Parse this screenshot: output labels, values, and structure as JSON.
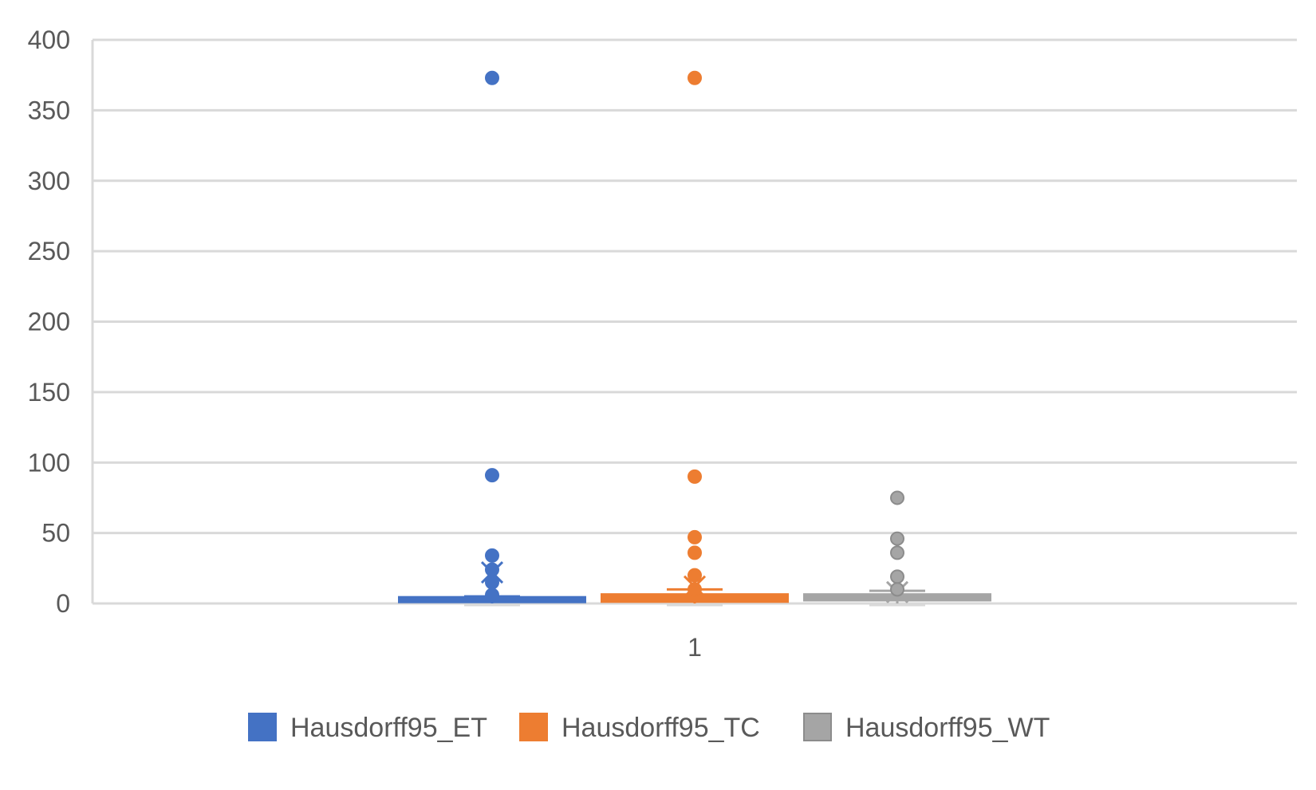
{
  "chart_data": {
    "type": "box",
    "title": "",
    "xlabel": "",
    "ylabel": "",
    "categories": [
      "1"
    ],
    "ylim": [
      0,
      400
    ],
    "yticks": [
      0,
      50,
      100,
      150,
      200,
      250,
      300,
      350,
      400
    ],
    "grid": true,
    "legend_position": "bottom",
    "series": [
      {
        "name": "Hausdorff95_ET",
        "color": "#4472C4",
        "min": 0,
        "q1": 1,
        "median": 2,
        "q3": 3,
        "max": 5,
        "mean": 22,
        "outliers": [
          373,
          91,
          34,
          24,
          15,
          6
        ]
      },
      {
        "name": "Hausdorff95_TC",
        "color": "#ED7D31",
        "min": 0,
        "q1": 1,
        "median": 2,
        "q3": 5,
        "max": 10,
        "mean": 12,
        "outliers": [
          373,
          90,
          47,
          36,
          20,
          10
        ]
      },
      {
        "name": "Hausdorff95_WT",
        "color": "#A5A5A5",
        "min": 0,
        "q1": 2,
        "median": 3,
        "q3": 5,
        "max": 9,
        "mean": 8,
        "outliers": [
          75,
          46,
          36,
          19,
          10
        ]
      }
    ]
  }
}
